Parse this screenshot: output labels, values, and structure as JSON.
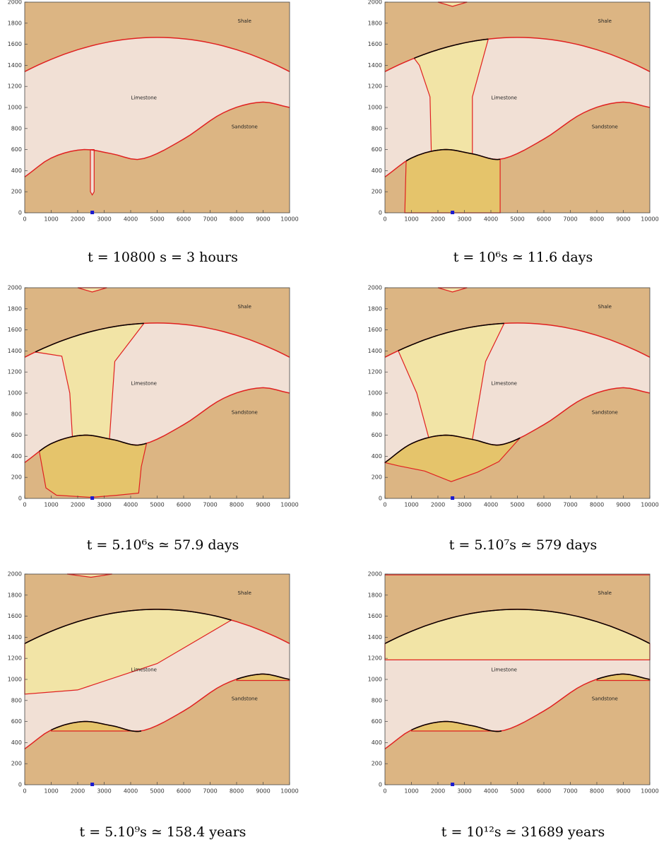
{
  "chart_data": [
    {
      "type": "section",
      "caption": "t = 10800 s = 3 hours",
      "layers": [
        "Shale",
        "Limestone",
        "Sandstone"
      ],
      "xlim": [
        0,
        10000
      ],
      "ylim": [
        0,
        2000
      ],
      "xticks": [
        0,
        1000,
        2000,
        3000,
        4000,
        5000,
        6000,
        7000,
        8000,
        9000,
        10000
      ],
      "yticks": [
        0,
        200,
        400,
        600,
        800,
        1000,
        1200,
        1400,
        1600,
        1800,
        2000
      ]
    },
    {
      "type": "section",
      "caption": "t = 10⁶s ≃ 11.6 days",
      "layers": [
        "Shale",
        "Limestone",
        "Sandstone"
      ],
      "xlim": [
        0,
        10000
      ],
      "ylim": [
        0,
        2000
      ],
      "xticks": [
        0,
        1000,
        2000,
        3000,
        4000,
        5000,
        6000,
        7000,
        8000,
        9000,
        10000
      ],
      "yticks": [
        0,
        200,
        400,
        600,
        800,
        1000,
        1200,
        1400,
        1600,
        1800,
        2000
      ]
    },
    {
      "type": "section",
      "caption": "t = 5.10⁶s ≃ 57.9 days",
      "layers": [
        "Shale",
        "Limestone",
        "Sandstone"
      ],
      "xlim": [
        0,
        10000
      ],
      "ylim": [
        0,
        2000
      ],
      "xticks": [
        0,
        1000,
        2000,
        3000,
        4000,
        5000,
        6000,
        7000,
        8000,
        9000,
        10000
      ],
      "yticks": [
        0,
        200,
        400,
        600,
        800,
        1000,
        1200,
        1400,
        1600,
        1800,
        2000
      ]
    },
    {
      "type": "section",
      "caption": "t = 5.10⁷s ≃ 579 days",
      "layers": [
        "Shale",
        "Limestone",
        "Sandstone"
      ],
      "xlim": [
        0,
        10000
      ],
      "ylim": [
        0,
        2000
      ],
      "xticks": [
        0,
        1000,
        2000,
        3000,
        4000,
        5000,
        6000,
        7000,
        8000,
        9000,
        10000
      ],
      "yticks": [
        0,
        200,
        400,
        600,
        800,
        1000,
        1200,
        1400,
        1600,
        1800,
        2000
      ]
    },
    {
      "type": "section",
      "caption": "t = 5.10⁹s ≃ 158.4 years",
      "layers": [
        "Shale",
        "Limestone",
        "Sandstone"
      ],
      "xlim": [
        0,
        10000
      ],
      "ylim": [
        0,
        2000
      ],
      "xticks": [
        0,
        1000,
        2000,
        3000,
        4000,
        5000,
        6000,
        7000,
        8000,
        9000,
        10000
      ],
      "yticks": [
        0,
        200,
        400,
        600,
        800,
        1000,
        1200,
        1400,
        1600,
        1800,
        2000
      ]
    },
    {
      "type": "section",
      "caption": "t = 10¹²s ≃ 31689 years",
      "layers": [
        "Shale",
        "Limestone",
        "Sandstone"
      ],
      "xlim": [
        0,
        10000
      ],
      "ylim": [
        0,
        2000
      ],
      "xticks": [
        0,
        1000,
        2000,
        3000,
        4000,
        5000,
        6000,
        7000,
        8000,
        9000,
        10000
      ],
      "yticks": [
        0,
        200,
        400,
        600,
        800,
        1000,
        1200,
        1400,
        1600,
        1800,
        2000
      ]
    }
  ]
}
